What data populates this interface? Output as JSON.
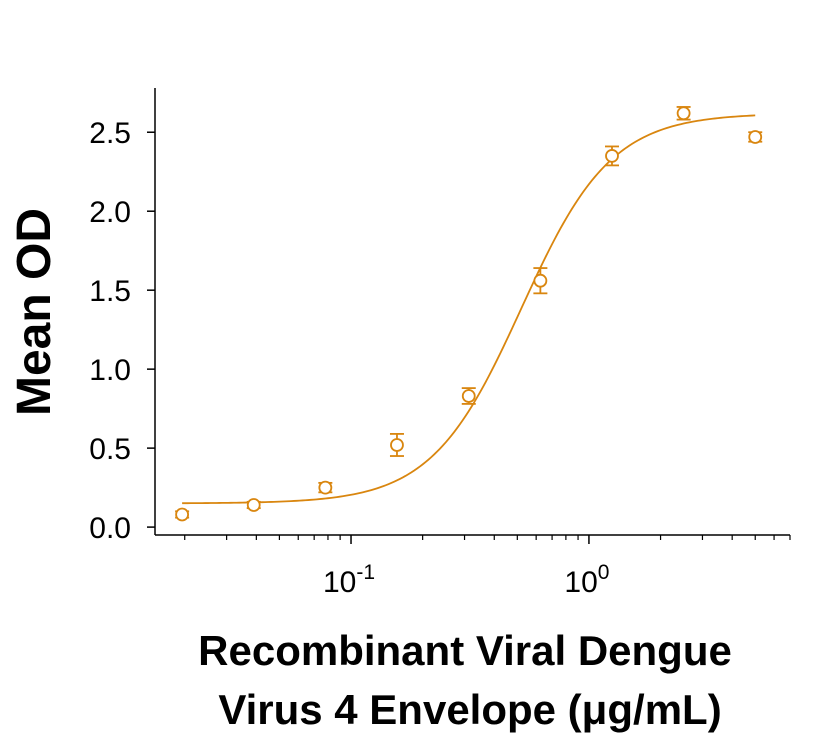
{
  "chart_data": {
    "type": "scatter",
    "title": "",
    "xscale": "log",
    "xlim": [
      0.015,
      7.0
    ],
    "ylim": [
      -0.05,
      2.78
    ],
    "xlabel_lines": [
      "Recombinant Viral Dengue",
      "Virus 4 Envelope (μg/mL)"
    ],
    "ylabel": "Mean OD",
    "x_ticks": [
      {
        "value": 0.1,
        "base": "10",
        "exp": "-1"
      },
      {
        "value": 1,
        "base": "10",
        "exp": "0"
      }
    ],
    "y_ticks": [
      {
        "value": 0.0,
        "label": "0.0"
      },
      {
        "value": 0.5,
        "label": "0.5"
      },
      {
        "value": 1.0,
        "label": "1.0"
      },
      {
        "value": 1.5,
        "label": "1.5"
      },
      {
        "value": 2.0,
        "label": "2.0"
      },
      {
        "value": 2.5,
        "label": "2.5"
      }
    ],
    "series": [
      {
        "name": "Mean OD",
        "color": "#d9860f",
        "marker": "open-circle",
        "x": [
          0.0195,
          0.039,
          0.078,
          0.156,
          0.3125,
          0.625,
          1.25,
          2.5,
          5.0
        ],
        "y": [
          0.08,
          0.14,
          0.25,
          0.52,
          0.83,
          1.56,
          2.35,
          2.62,
          2.47
        ],
        "err": [
          0.02,
          0.02,
          0.03,
          0.07,
          0.05,
          0.08,
          0.06,
          0.04,
          0.03
        ]
      }
    ],
    "fit": {
      "model": "4PL",
      "bottom": 0.15,
      "top": 2.62,
      "ec50": 0.52,
      "hill": 2.3,
      "x_range": [
        0.0195,
        5.0
      ],
      "color": "#d9860f"
    }
  }
}
